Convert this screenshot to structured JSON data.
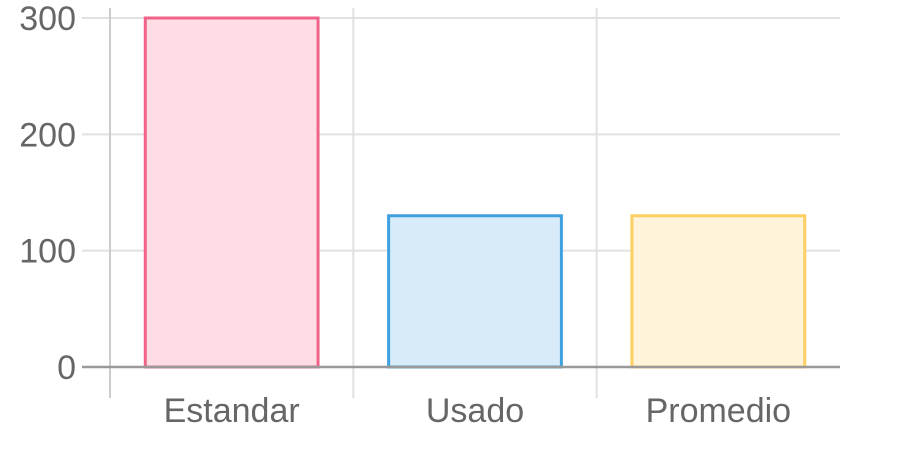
{
  "chart_data": {
    "type": "bar",
    "categories": [
      "Estandar",
      "Usado",
      "Promedio"
    ],
    "values": [
      300,
      130,
      130
    ],
    "ylim": [
      0,
      300
    ],
    "yticks": [
      0,
      100,
      200,
      300
    ],
    "grid": true,
    "legend": "none",
    "colors": {
      "fills": [
        "#ffdde4",
        "#d7ebf9",
        "#fff3da"
      ],
      "strokes": [
        "#f0648a",
        "#3fa0e0",
        "#fccf63"
      ],
      "grid": "#e1e1e1",
      "axis": "#999999",
      "text": "#666666"
    }
  }
}
